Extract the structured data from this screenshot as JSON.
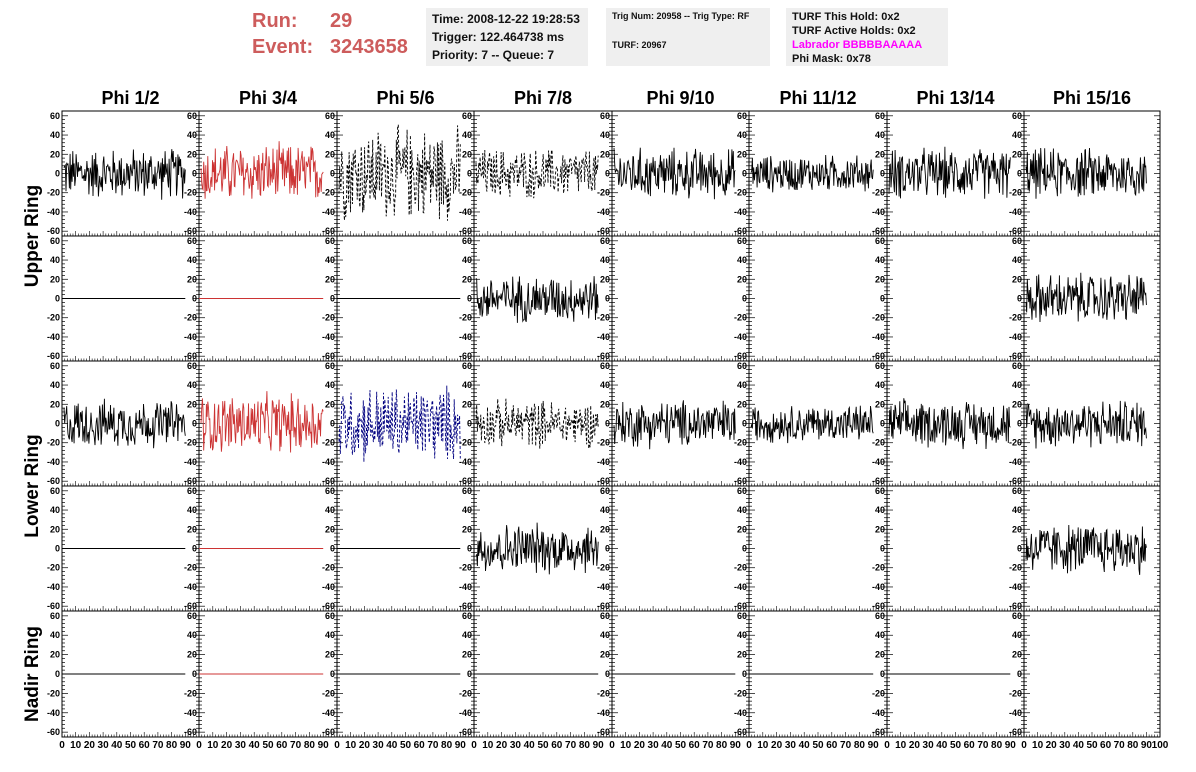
{
  "header": {
    "run_label": "Run:",
    "run_value": "29",
    "event_label": "Event:",
    "event_value": "3243658",
    "time": "Time: 2008-12-22 19:28:53",
    "trigger": "Trigger: 122.464738 ms",
    "priority": "Priority: 7 -- Queue: 7",
    "trig_num": "Trig Num: 20958 -- Trig Type: RF",
    "turf": "TURF: 20967",
    "turf_this_hold": "TURF This Hold: 0x2",
    "turf_active_holds": "TURF Active Holds: 0x2",
    "labrador": "Labrador BBBBBAAAAA",
    "phi_mask": "Phi Mask: 0x78",
    "run_color": "#cd5c5c",
    "labrador_color": "#ff00ff"
  },
  "chart_data": {
    "type": "line",
    "columns": [
      "Phi 1/2",
      "Phi 3/4",
      "Phi 5/6",
      "Phi 7/8",
      "Phi 9/10",
      "Phi 11/12",
      "Phi 13/14",
      "Phi 15/16"
    ],
    "ring_labels": [
      "Upper Ring",
      "Lower Ring",
      "Nadir Ring"
    ],
    "ylim": [
      -65,
      65
    ],
    "yticks": [
      -60,
      -40,
      -20,
      0,
      20,
      40,
      60
    ],
    "xlim": [
      0,
      100
    ],
    "xtick_labels": [
      "0",
      "10",
      "20",
      "30",
      "40",
      "50",
      "60",
      "70",
      "80",
      "90",
      "100"
    ],
    "panel_series": [
      [
        {
          "style": "solid",
          "color": "#000000",
          "amplitude": 30,
          "x": [
            0,
            90
          ]
        },
        {
          "style": "solid",
          "color": "#cc3333",
          "amplitude": 35,
          "x": [
            0,
            90
          ]
        },
        {
          "style": "dashed",
          "color": "#000000",
          "amplitude": 55,
          "x": [
            0,
            90
          ]
        },
        {
          "style": "dashed",
          "color": "#000000",
          "amplitude": 30,
          "x": [
            0,
            90
          ]
        },
        {
          "style": "solid",
          "color": "#000000",
          "amplitude": 30,
          "x": [
            0,
            90
          ]
        },
        {
          "style": "solid",
          "color": "#000000",
          "amplitude": 22,
          "x": [
            0,
            90
          ]
        },
        {
          "style": "solid",
          "color": "#000000",
          "amplitude": 30,
          "x": [
            0,
            90
          ]
        },
        {
          "style": "solid",
          "color": "#000000",
          "amplitude": 30,
          "x": [
            0,
            90
          ]
        }
      ],
      [
        {
          "style": "flat",
          "color": "#000000",
          "amplitude": 0,
          "x": [
            0,
            90
          ]
        },
        {
          "style": "flat",
          "color": "#cc3333",
          "amplitude": 0,
          "x": [
            0,
            90
          ]
        },
        {
          "style": "flat",
          "color": "#000000",
          "amplitude": 0,
          "x": [
            0,
            90
          ]
        },
        {
          "style": "solid",
          "color": "#000000",
          "amplitude": 28,
          "x": [
            0,
            90
          ]
        },
        {
          "style": "none",
          "color": "#000000",
          "amplitude": 0,
          "x": [
            0,
            90
          ]
        },
        {
          "style": "none",
          "color": "#000000",
          "amplitude": 0,
          "x": [
            0,
            90
          ]
        },
        {
          "style": "none",
          "color": "#000000",
          "amplitude": 0,
          "x": [
            0,
            90
          ]
        },
        {
          "style": "solid",
          "color": "#000000",
          "amplitude": 30,
          "x": [
            0,
            90
          ]
        }
      ],
      [
        {
          "style": "solid",
          "color": "#000000",
          "amplitude": 28,
          "x": [
            0,
            90
          ]
        },
        {
          "style": "solid",
          "color": "#cc3333",
          "amplitude": 35,
          "x": [
            0,
            90
          ]
        },
        {
          "style": "dashed",
          "color": "#000080",
          "amplitude": 45,
          "x": [
            0,
            90
          ]
        },
        {
          "style": "dashed",
          "color": "#000000",
          "amplitude": 28,
          "x": [
            0,
            90
          ]
        },
        {
          "style": "solid",
          "color": "#000000",
          "amplitude": 28,
          "x": [
            0,
            90
          ]
        },
        {
          "style": "solid",
          "color": "#000000",
          "amplitude": 22,
          "x": [
            0,
            90
          ]
        },
        {
          "style": "solid",
          "color": "#000000",
          "amplitude": 28,
          "x": [
            0,
            90
          ]
        },
        {
          "style": "solid",
          "color": "#000000",
          "amplitude": 28,
          "x": [
            0,
            90
          ]
        }
      ],
      [
        {
          "style": "flat",
          "color": "#000000",
          "amplitude": 0,
          "x": [
            0,
            90
          ]
        },
        {
          "style": "flat",
          "color": "#cc3333",
          "amplitude": 0,
          "x": [
            0,
            90
          ]
        },
        {
          "style": "flat",
          "color": "#000000",
          "amplitude": 0,
          "x": [
            0,
            90
          ]
        },
        {
          "style": "solid",
          "color": "#000000",
          "amplitude": 30,
          "x": [
            0,
            90
          ]
        },
        {
          "style": "none",
          "color": "#000000",
          "amplitude": 0,
          "x": [
            0,
            90
          ]
        },
        {
          "style": "none",
          "color": "#000000",
          "amplitude": 0,
          "x": [
            0,
            90
          ]
        },
        {
          "style": "none",
          "color": "#000000",
          "amplitude": 0,
          "x": [
            0,
            90
          ]
        },
        {
          "style": "solid",
          "color": "#000000",
          "amplitude": 30,
          "x": [
            0,
            90
          ]
        }
      ],
      [
        {
          "style": "flat",
          "color": "#000000",
          "amplitude": 0,
          "x": [
            0,
            90
          ]
        },
        {
          "style": "flat",
          "color": "#cc3333",
          "amplitude": 0,
          "x": [
            0,
            90
          ]
        },
        {
          "style": "flat",
          "color": "#000000",
          "amplitude": 0,
          "x": [
            0,
            90
          ]
        },
        {
          "style": "flat",
          "color": "#000000",
          "amplitude": 0,
          "x": [
            0,
            90
          ]
        },
        {
          "style": "flat",
          "color": "#000000",
          "amplitude": 0,
          "x": [
            0,
            90
          ]
        },
        {
          "style": "flat",
          "color": "#000000",
          "amplitude": 0,
          "x": [
            0,
            90
          ]
        },
        {
          "style": "flat",
          "color": "#000000",
          "amplitude": 0,
          "x": [
            0,
            90
          ]
        },
        {
          "style": "none",
          "color": "#000000",
          "amplitude": 0,
          "x": [
            0,
            90
          ]
        }
      ]
    ]
  }
}
